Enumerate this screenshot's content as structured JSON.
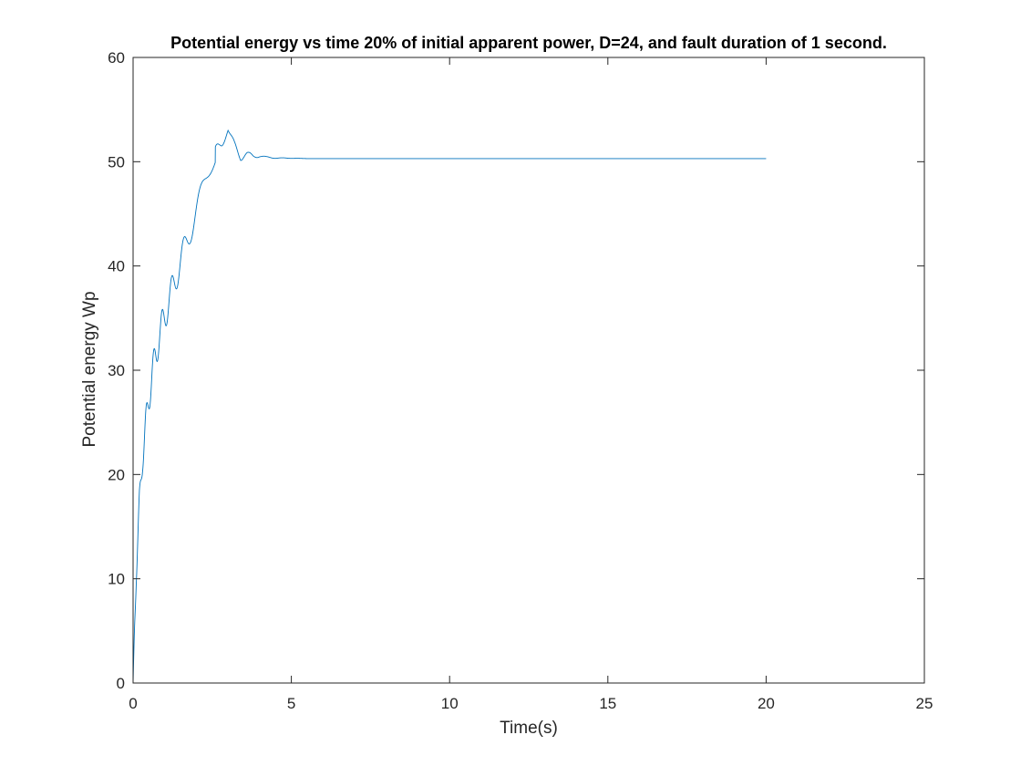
{
  "chart_data": {
    "type": "line",
    "title": "Potential energy vs time 20% of initial apparent power,  D=24, and fault duration of 1 second.",
    "xlabel": "Time(s)",
    "ylabel": "Potential energy Wp",
    "xlim": [
      0,
      25
    ],
    "ylim": [
      0,
      60
    ],
    "xticks": [
      0,
      5,
      10,
      15,
      20,
      25
    ],
    "yticks": [
      0,
      10,
      20,
      30,
      40,
      50,
      60
    ],
    "grid": false,
    "box": true,
    "series": [
      {
        "color": "#0072bd",
        "t_end": 20,
        "settled_value": 50.3,
        "x": [
          0,
          0.05,
          0.1,
          0.2,
          0.3,
          0.4,
          0.5,
          0.6,
          0.7,
          0.8,
          0.9,
          1.0,
          1.2,
          1.4,
          1.6,
          1.8,
          2.0,
          2.2,
          2.4,
          2.6,
          2.8,
          3.0,
          3.2,
          3.4,
          3.6,
          3.8,
          4.0,
          4.2,
          4.5,
          5.0,
          5.5,
          6.0,
          8.0,
          10.0,
          15.0,
          20.0
        ],
        "y": [
          0,
          6.5,
          11.5,
          18.5,
          23.0,
          26.2,
          28.8,
          31.0,
          32.8,
          34.3,
          35.6,
          36.7,
          38.8,
          40.8,
          42.7,
          44.7,
          46.5,
          48.3,
          50.0,
          51.5,
          52.3,
          53.2,
          52.0,
          51.1,
          51.0,
          50.7,
          50.7,
          50.5,
          50.4,
          50.35,
          50.3,
          50.3,
          50.3,
          50.3,
          50.3,
          50.3
        ],
        "swing": [
          0,
          1.5,
          2.0,
          2.5,
          2.7,
          2.8,
          2.9,
          3.0,
          3.0,
          3.0,
          3.0,
          3.0,
          2.9,
          2.8,
          2.7,
          2.6,
          2.5,
          2.3,
          2.1,
          1.6,
          1.1,
          0.3,
          0.9,
          1.0,
          0.55,
          0.4,
          0.25,
          0.15,
          0.08,
          0.03,
          0.0,
          0.0,
          0.0,
          0.0,
          0.0,
          0.0
        ]
      }
    ]
  }
}
